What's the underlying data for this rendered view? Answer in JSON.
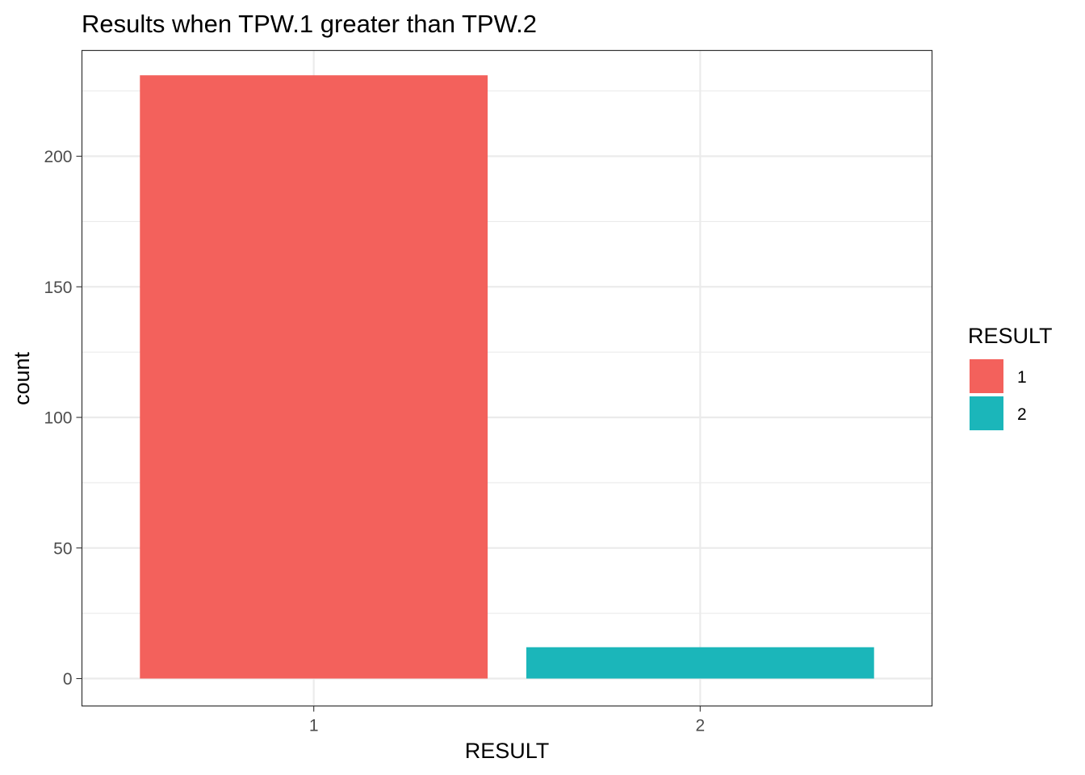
{
  "chart_data": {
    "type": "bar",
    "title": "Results when TPW.1 greater than TPW.2",
    "xlabel": "RESULT",
    "ylabel": "count",
    "categories": [
      "1",
      "2"
    ],
    "values": [
      231,
      12
    ],
    "colors": [
      "#F3615C",
      "#1BB6BA"
    ],
    "ylim": [
      -10.5,
      240.5
    ],
    "yticks": [
      0,
      50,
      100,
      150,
      200
    ],
    "ytick_labels": [
      "0",
      "50",
      "100",
      "150",
      "200"
    ],
    "grid": true,
    "legend": {
      "title": "RESULT",
      "placement": "right",
      "entries": [
        {
          "label": "1",
          "color": "#F3615C"
        },
        {
          "label": "2",
          "color": "#1BB6BA"
        }
      ]
    }
  }
}
